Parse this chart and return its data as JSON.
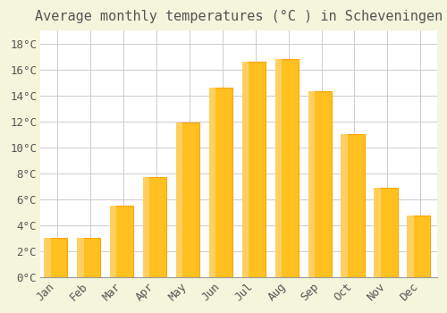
{
  "title": "Average monthly temperatures (°C ) in Scheveningen",
  "months": [
    "Jan",
    "Feb",
    "Mar",
    "Apr",
    "May",
    "Jun",
    "Jul",
    "Aug",
    "Sep",
    "Oct",
    "Nov",
    "Dec"
  ],
  "temperatures": [
    3.0,
    3.0,
    5.5,
    7.7,
    11.9,
    14.6,
    16.6,
    16.8,
    14.3,
    11.0,
    6.9,
    4.7
  ],
  "bar_color": "#FFC020",
  "bar_edge_color": "#FFA500",
  "background_color": "#F5F5DC",
  "plot_bg_color": "#FFFFFF",
  "grid_color": "#CCCCCC",
  "text_color": "#555555",
  "title_fontsize": 11,
  "tick_fontsize": 9,
  "ylim": [
    0,
    19
  ],
  "yticks": [
    0,
    2,
    4,
    6,
    8,
    10,
    12,
    14,
    16,
    18
  ]
}
